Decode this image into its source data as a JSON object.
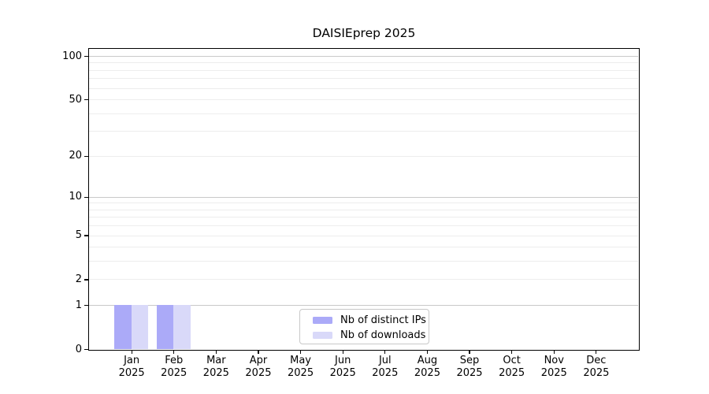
{
  "chart_data": {
    "type": "bar",
    "title": "DAISIEprep 2025",
    "x_categories": [
      {
        "month": "Jan",
        "year": "2025"
      },
      {
        "month": "Feb",
        "year": "2025"
      },
      {
        "month": "Mar",
        "year": "2025"
      },
      {
        "month": "Apr",
        "year": "2025"
      },
      {
        "month": "May",
        "year": "2025"
      },
      {
        "month": "Jun",
        "year": "2025"
      },
      {
        "month": "Jul",
        "year": "2025"
      },
      {
        "month": "Aug",
        "year": "2025"
      },
      {
        "month": "Sep",
        "year": "2025"
      },
      {
        "month": "Oct",
        "year": "2025"
      },
      {
        "month": "Nov",
        "year": "2025"
      },
      {
        "month": "Dec",
        "year": "2025"
      }
    ],
    "series": [
      {
        "name": "Nb of distinct IPs",
        "color": "#abaaf8",
        "values": [
          1,
          1,
          0,
          0,
          0,
          0,
          0,
          0,
          0,
          0,
          0,
          0
        ]
      },
      {
        "name": "Nb of downloads",
        "color": "#d9d9f9",
        "values": [
          1,
          1,
          0,
          0,
          0,
          0,
          0,
          0,
          0,
          0,
          0,
          0
        ]
      }
    ],
    "y_axis": {
      "scale": "log10(y+1)",
      "ylim": [
        0,
        112
      ],
      "ticks": [
        0,
        1,
        2,
        5,
        10,
        20,
        50,
        100
      ],
      "major_gridlines": [
        1,
        10,
        100
      ],
      "minor_gridlines": [
        2,
        3,
        4,
        5,
        6,
        7,
        8,
        9,
        20,
        30,
        40,
        50,
        60,
        70,
        80,
        90
      ]
    },
    "legend": {
      "position": "bottom-center"
    },
    "colors": {
      "grid_major": "#c9c9c9",
      "grid_minor": "#ededed",
      "spine": "#000000",
      "text": "#000000"
    }
  }
}
